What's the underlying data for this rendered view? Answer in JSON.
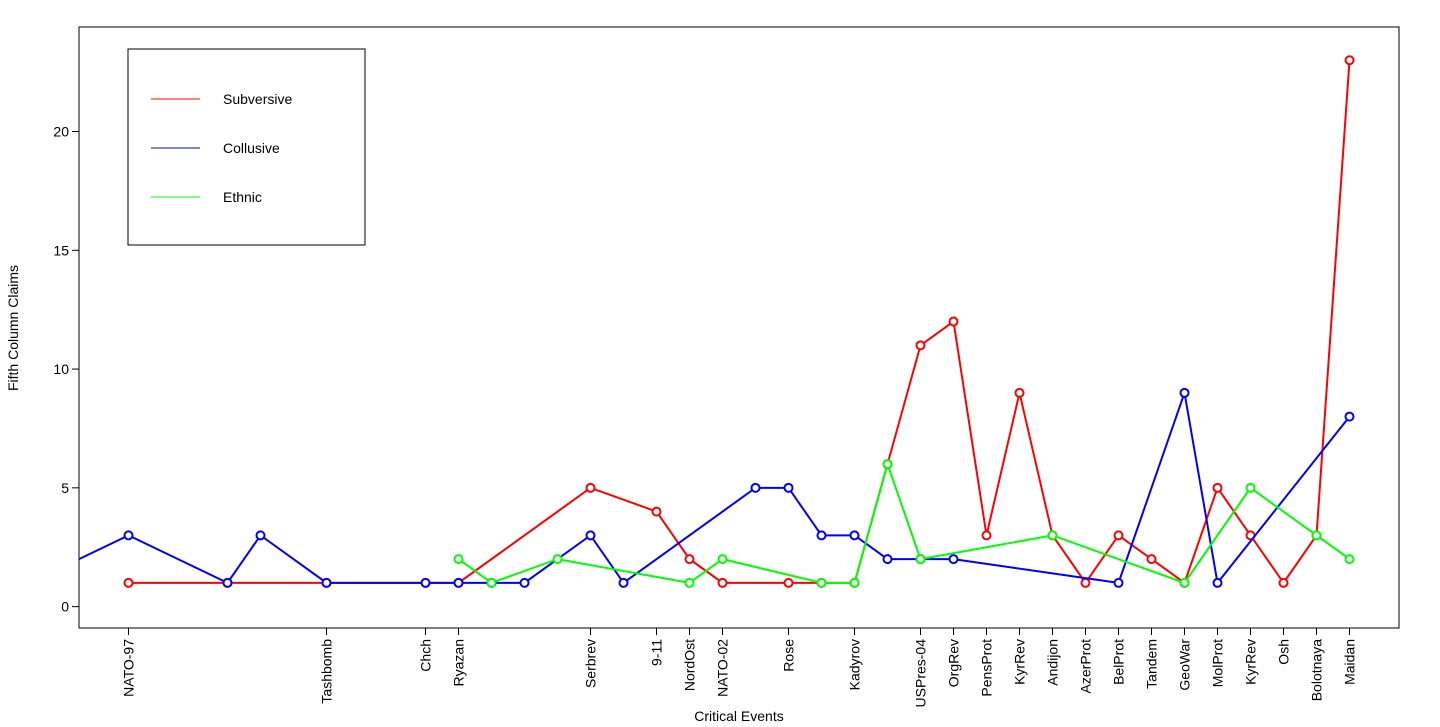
{
  "chart_data": {
    "type": "line",
    "title": "",
    "xlabel": "Critical Events",
    "ylabel": "Fifth Column Claims",
    "ylim": [
      -0.9,
      24.4
    ],
    "yticks": [
      0,
      5,
      10,
      15,
      20
    ],
    "xlim": [
      -0.5,
      39.5
    ],
    "x_ticks": [
      {
        "x": 1,
        "label": "NATO-97"
      },
      {
        "x": 7,
        "label": "Tashbomb"
      },
      {
        "x": 10,
        "label": "Chch"
      },
      {
        "x": 11,
        "label": "Ryazan"
      },
      {
        "x": 15,
        "label": "Serbrev"
      },
      {
        "x": 17,
        "label": "9-11"
      },
      {
        "x": 18,
        "label": "NordOst"
      },
      {
        "x": 19,
        "label": "NATO-02"
      },
      {
        "x": 21,
        "label": "Rose"
      },
      {
        "x": 23,
        "label": "Kadyrov"
      },
      {
        "x": 25,
        "label": "USPres-04"
      },
      {
        "x": 26,
        "label": "OrgRev"
      },
      {
        "x": 27,
        "label": "PensProt"
      },
      {
        "x": 28,
        "label": "KyrRev"
      },
      {
        "x": 29,
        "label": "Andijon"
      },
      {
        "x": 30,
        "label": "AzerProt"
      },
      {
        "x": 31,
        "label": "BelProt"
      },
      {
        "x": 32,
        "label": "Tandem"
      },
      {
        "x": 33,
        "label": "GeoWar"
      },
      {
        "x": 34,
        "label": "MolProt"
      },
      {
        "x": 35,
        "label": "KyrRev"
      },
      {
        "x": 36,
        "label": "Osh"
      },
      {
        "x": 37,
        "label": "Bolotnaya"
      },
      {
        "x": 38,
        "label": "Maidan"
      }
    ],
    "series": [
      {
        "name": "Subversive",
        "color": "#ff0000",
        "points": [
          [
            1,
            1
          ],
          [
            4,
            1
          ],
          [
            7,
            1
          ],
          [
            10,
            1
          ],
          [
            11,
            1
          ],
          [
            15,
            5
          ],
          [
            17,
            4
          ],
          [
            18,
            2
          ],
          [
            19,
            1
          ],
          [
            21,
            1
          ],
          [
            22,
            1
          ],
          [
            23,
            1
          ],
          [
            24,
            6
          ],
          [
            25,
            11
          ],
          [
            26,
            12
          ],
          [
            27,
            3
          ],
          [
            28,
            9
          ],
          [
            29,
            3
          ],
          [
            30,
            1
          ],
          [
            31,
            3
          ],
          [
            32,
            2
          ],
          [
            33,
            1
          ],
          [
            34,
            5
          ],
          [
            35,
            3
          ],
          [
            36,
            1
          ],
          [
            37,
            3
          ],
          [
            38,
            23
          ]
        ]
      },
      {
        "name": "Collusive",
        "color": "#0000ff",
        "points": [
          [
            -0.5,
            2
          ],
          [
            1,
            3
          ],
          [
            4,
            1
          ],
          [
            5,
            3
          ],
          [
            7,
            1
          ],
          [
            10,
            1
          ],
          [
            11,
            1
          ],
          [
            12,
            1
          ],
          [
            13,
            1
          ],
          [
            15,
            3
          ],
          [
            16,
            1
          ],
          [
            20,
            5
          ],
          [
            21,
            5
          ],
          [
            22,
            3
          ],
          [
            23,
            3
          ],
          [
            24,
            2
          ],
          [
            25,
            2
          ],
          [
            26,
            2
          ],
          [
            31,
            1
          ],
          [
            33,
            9
          ],
          [
            34,
            1
          ],
          [
            38,
            8
          ]
        ]
      },
      {
        "name": "Ethnic",
        "color": "#00ff00",
        "points": [
          [
            11,
            2
          ],
          [
            12,
            1
          ],
          [
            14,
            2
          ],
          [
            18,
            1
          ],
          [
            19,
            2
          ],
          [
            22,
            1
          ],
          [
            23,
            1
          ],
          [
            24,
            6
          ],
          [
            25,
            2
          ],
          [
            29,
            3
          ],
          [
            33,
            1
          ],
          [
            35,
            5
          ],
          [
            37,
            3
          ],
          [
            38,
            2
          ]
        ]
      }
    ],
    "legend": {
      "position": "top-left",
      "entries": [
        "Subversive",
        "Collusive",
        "Ethnic"
      ]
    }
  }
}
